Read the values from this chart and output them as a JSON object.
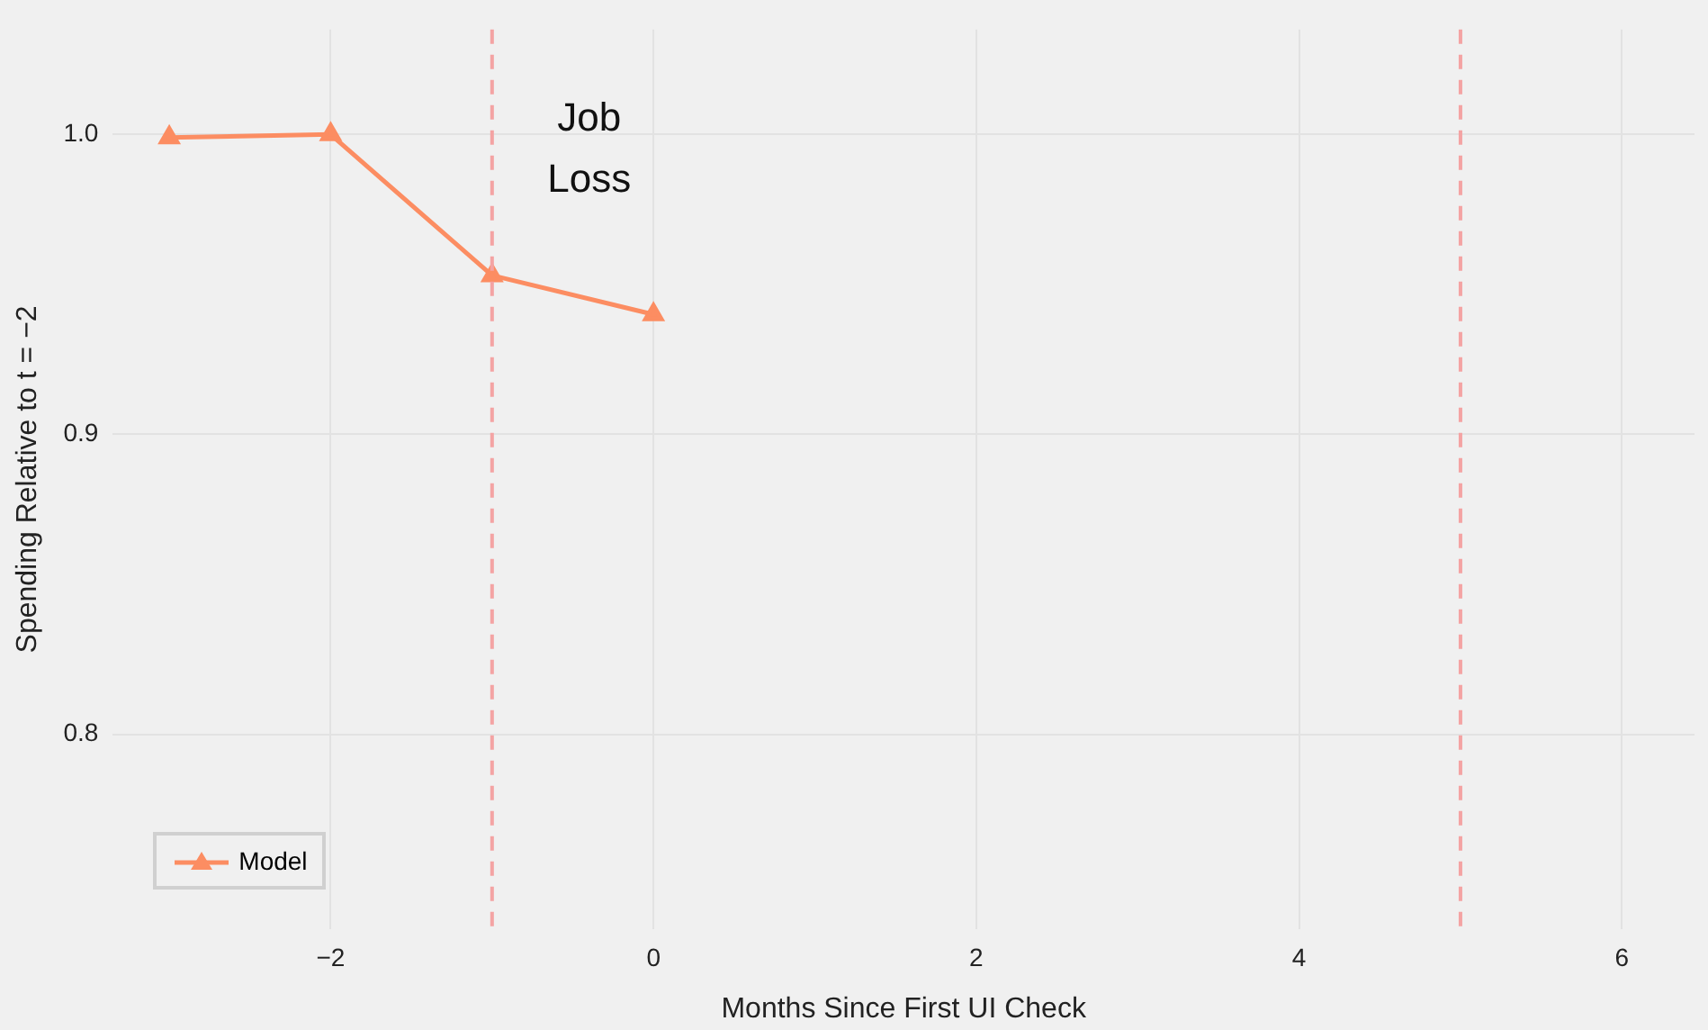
{
  "chart_data": {
    "type": "line",
    "xlabel": "Months Since First UI Check",
    "ylabel": "Spending Relative to t = −2",
    "x": [
      -3,
      -2,
      -1,
      0
    ],
    "series": [
      {
        "name": "Model",
        "color": "#fc8d62",
        "values": [
          0.999,
          1.0,
          0.953,
          0.94
        ]
      }
    ],
    "xlim": [
      -3.35,
      6.45
    ],
    "ylim": [
      0.735,
      1.035
    ],
    "xticks": [
      {
        "value": -2,
        "label": "−2"
      },
      0,
      2,
      4,
      6
    ],
    "yticks": [
      0.8,
      0.9,
      {
        "value": 1.0,
        "label": "1.0"
      }
    ],
    "ref_lines": [
      {
        "axis": "x",
        "value": -1,
        "label": "Job\nLoss",
        "color": "#f4a3a3",
        "line_style": "dashed"
      },
      {
        "axis": "x",
        "value": 5,
        "color": "#f4a3a3",
        "line_style": "dashed"
      }
    ],
    "grid": true,
    "legend": "bottom left",
    "marker": "triangle",
    "line_style": "solid"
  }
}
